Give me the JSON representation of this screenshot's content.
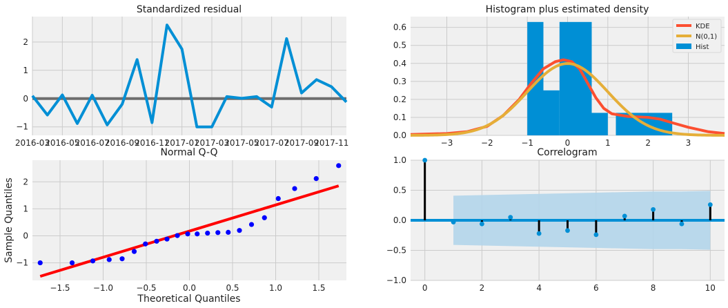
{
  "colors": {
    "panel_bg": "#f0f0f0",
    "grid": "#cbcbcb",
    "blue": "#008fd5",
    "red": "#fc4f30",
    "yellow": "#e5ae38",
    "gray": "#6d6d6d",
    "qq_points": "#0000ff",
    "qq_line": "#ff0000",
    "band": "#b3d5ea"
  },
  "chart_data": [
    {
      "id": "resid",
      "type": "line",
      "title": "Standardized residual",
      "xlabel": "",
      "ylabel": "",
      "x": [
        "2016-03",
        "2016-04",
        "2016-05",
        "2016-06",
        "2016-07",
        "2016-08",
        "2016-09",
        "2016-10",
        "2016-11",
        "2016-12",
        "2017-01",
        "2017-02",
        "2017-03",
        "2017-04",
        "2017-05",
        "2017-06",
        "2017-07",
        "2017-08",
        "2017-09",
        "2017-10",
        "2017-11",
        "2017-12"
      ],
      "values": [
        0.1,
        -0.58,
        0.13,
        -0.88,
        0.12,
        -0.93,
        -0.2,
        1.38,
        -0.85,
        2.6,
        1.75,
        -1.0,
        -1.0,
        0.07,
        0.01,
        0.07,
        -0.3,
        2.12,
        0.2,
        0.67,
        0.42,
        -0.12
      ],
      "xticks": [
        "2016-03",
        "2016-05",
        "2016-07",
        "2016-09",
        "2016-11",
        "2017-01",
        "2017-03",
        "2017-05",
        "2017-07",
        "2017-09",
        "2017-11"
      ],
      "yticks": [
        -1,
        0,
        1,
        2
      ],
      "ylim": [
        -1.3,
        2.9
      ],
      "hline": 0
    },
    {
      "id": "hist",
      "type": "bar",
      "title": "Histogram plus estimated density",
      "xlim": [
        -3.9,
        3.9
      ],
      "ylim": [
        0,
        0.66
      ],
      "xticks": [
        -3,
        -2,
        -1,
        0,
        1,
        2,
        3
      ],
      "yticks": [
        0.0,
        0.1,
        0.2,
        0.3,
        0.4,
        0.5,
        0.6
      ],
      "bins": [
        {
          "x0": -1.0,
          "x1": -0.6,
          "h": 0.63
        },
        {
          "x0": -0.6,
          "x1": -0.2,
          "h": 0.25
        },
        {
          "x0": -0.2,
          "x1": 0.6,
          "h": 0.63
        },
        {
          "x0": 0.6,
          "x1": 1.0,
          "h": 0.125
        },
        {
          "x0": 1.2,
          "x1": 2.6,
          "h": 0.125
        }
      ],
      "kde": [
        [
          -3.9,
          0.005
        ],
        [
          -3.0,
          0.01
        ],
        [
          -2.5,
          0.02
        ],
        [
          -2.0,
          0.05
        ],
        [
          -1.6,
          0.11
        ],
        [
          -1.2,
          0.2
        ],
        [
          -0.9,
          0.29
        ],
        [
          -0.6,
          0.37
        ],
        [
          -0.3,
          0.41
        ],
        [
          -0.1,
          0.42
        ],
        [
          0.1,
          0.41
        ],
        [
          0.3,
          0.37
        ],
        [
          0.5,
          0.29
        ],
        [
          0.7,
          0.21
        ],
        [
          0.9,
          0.15
        ],
        [
          1.1,
          0.12
        ],
        [
          1.5,
          0.105
        ],
        [
          2.0,
          0.1
        ],
        [
          2.3,
          0.09
        ],
        [
          2.6,
          0.07
        ],
        [
          3.0,
          0.045
        ],
        [
          3.5,
          0.02
        ],
        [
          3.9,
          0.01
        ]
      ],
      "series": [
        {
          "name": "KDE",
          "color": "#fc4f30"
        },
        {
          "name": "N(0,1)",
          "color": "#e5ae38"
        },
        {
          "name": "Hist",
          "color": "#008fd5"
        }
      ],
      "legend": "top-right"
    },
    {
      "id": "qq",
      "type": "scatter",
      "title": "Normal Q-Q",
      "xlabel": "Theoretical Quantiles",
      "ylabel": "Sample Quantiles",
      "xlim": [
        -1.82,
        1.82
      ],
      "ylim": [
        -1.65,
        2.8
      ],
      "xticks": [
        -1.5,
        -1.0,
        -0.5,
        0.0,
        0.5,
        1.0,
        1.5
      ],
      "yticks": [
        -1,
        0,
        1,
        2
      ],
      "points": [
        [
          -1.73,
          -1.0
        ],
        [
          -1.36,
          -1.0
        ],
        [
          -1.12,
          -0.93
        ],
        [
          -0.93,
          -0.88
        ],
        [
          -0.78,
          -0.85
        ],
        [
          -0.64,
          -0.58
        ],
        [
          -0.51,
          -0.3
        ],
        [
          -0.38,
          -0.2
        ],
        [
          -0.26,
          -0.12
        ],
        [
          -0.14,
          0.01
        ],
        [
          -0.02,
          0.07
        ],
        [
          0.09,
          0.07
        ],
        [
          0.21,
          0.1
        ],
        [
          0.33,
          0.12
        ],
        [
          0.45,
          0.13
        ],
        [
          0.58,
          0.2
        ],
        [
          0.72,
          0.42
        ],
        [
          0.87,
          0.67
        ],
        [
          1.03,
          1.38
        ],
        [
          1.22,
          1.75
        ],
        [
          1.47,
          2.12
        ],
        [
          1.73,
          2.6
        ]
      ],
      "fit_line": [
        [
          -1.73,
          -1.5
        ],
        [
          1.73,
          1.85
        ]
      ]
    },
    {
      "id": "acf",
      "type": "bar",
      "title": "Correlogram",
      "xlim": [
        -0.5,
        10.5
      ],
      "ylim": [
        -1.0,
        1.0
      ],
      "xticks": [
        0,
        2,
        4,
        6,
        8,
        10
      ],
      "yticks": [
        -1.0,
        -0.5,
        0.0,
        0.5,
        1.0
      ],
      "lags": [
        0,
        1,
        2,
        3,
        4,
        5,
        6,
        7,
        8,
        9,
        10
      ],
      "values": [
        1.0,
        -0.03,
        -0.06,
        0.05,
        -0.22,
        -0.17,
        -0.24,
        0.07,
        0.18,
        -0.06,
        0.26
      ],
      "conf_upper": [
        0.41,
        0.41,
        0.42,
        0.43,
        0.44,
        0.45,
        0.46,
        0.47,
        0.48,
        0.48,
        0.49
      ],
      "conf_lower": [
        -0.41,
        -0.41,
        -0.42,
        -0.43,
        -0.44,
        -0.45,
        -0.46,
        -0.47,
        -0.48,
        -0.48,
        -0.49
      ]
    }
  ]
}
